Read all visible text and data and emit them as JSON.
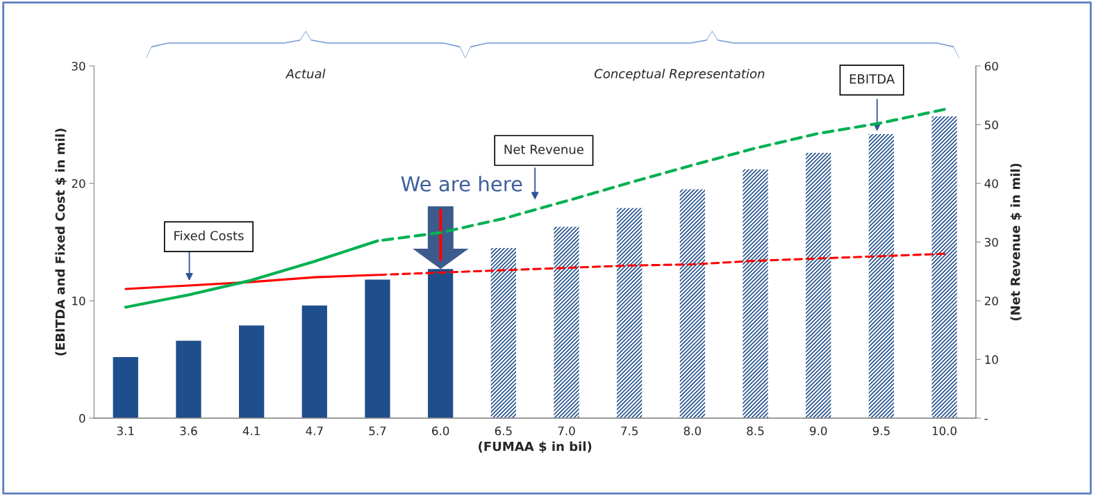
{
  "chart_data": {
    "type": "bar",
    "categories": [
      "3.1",
      "3.6",
      "4.1",
      "4.7",
      "5.7",
      "6.0",
      "6.5",
      "7.0",
      "7.5",
      "8.0",
      "8.5",
      "9.0",
      "9.5",
      "10.0"
    ],
    "series": [
      {
        "color": "#1f4e8c",
        "line_style": "solid",
        "values": [
          5.2,
          6.6,
          7.9,
          9.6,
          11.8,
          12.7,
          null,
          null,
          null,
          null,
          null,
          null,
          null,
          null
        ]
      },
      {
        "color": "#1f4e8c",
        "line_style": "dashed",
        "values": [
          null,
          null,
          null,
          null,
          null,
          null,
          14.5,
          16.3,
          17.9,
          19.5,
          21.2,
          22.6,
          24.2,
          25.7
        ]
      },
      {
        "type": "line",
        "color": "#ff0000",
        "line_style": "solid",
        "values": [
          11.0,
          11.3,
          11.6,
          12.0,
          12.2,
          null,
          null,
          null,
          null,
          null,
          null,
          null,
          null,
          null
        ]
      },
      {
        "type": "line",
        "color": "#ff0000",
        "line_style": "dashed",
        "values": [
          null,
          null,
          null,
          null,
          12.2,
          12.4,
          12.6,
          12.8,
          13.0,
          13.1,
          13.4,
          13.6,
          13.8,
          14.0
        ]
      },
      {
        "type": "line",
        "color": "#00b050",
        "line_style": "solid",
        "axis": "y2",
        "values": [
          18.9,
          21.0,
          23.5,
          26.7,
          30.2,
          null,
          null,
          null,
          null,
          null,
          null,
          null,
          null,
          null
        ]
      },
      {
        "type": "line",
        "color": "#00b050",
        "line_style": "dashed",
        "axis": "y2",
        "values": [
          null,
          null,
          null,
          null,
          30.2,
          31.6,
          34.0,
          37.0,
          40.1,
          43.1,
          46.0,
          48.5,
          50.3,
          52.6
        ]
      }
    ],
    "xlabel": "(FUMAA $ in bil)",
    "ylabel": "(EBITDA and Fixed Cost $ in mil)",
    "y2label": "(Net Revenue $ in mil)",
    "ylim": [
      0,
      30
    ],
    "yticks": [
      0,
      10,
      20,
      30
    ],
    "y2lim": [
      0,
      60
    ],
    "y2ticks": [
      {
        "value": 0,
        "label": "-"
      },
      10,
      20,
      30,
      40,
      50,
      60
    ],
    "annotations": [
      "Actual",
      "Conceptual Representation",
      "Fixed Costs",
      "Net Revenue",
      "EBITDA",
      "We are here"
    ],
    "grid": false,
    "legend": false,
    "marker": "none"
  }
}
